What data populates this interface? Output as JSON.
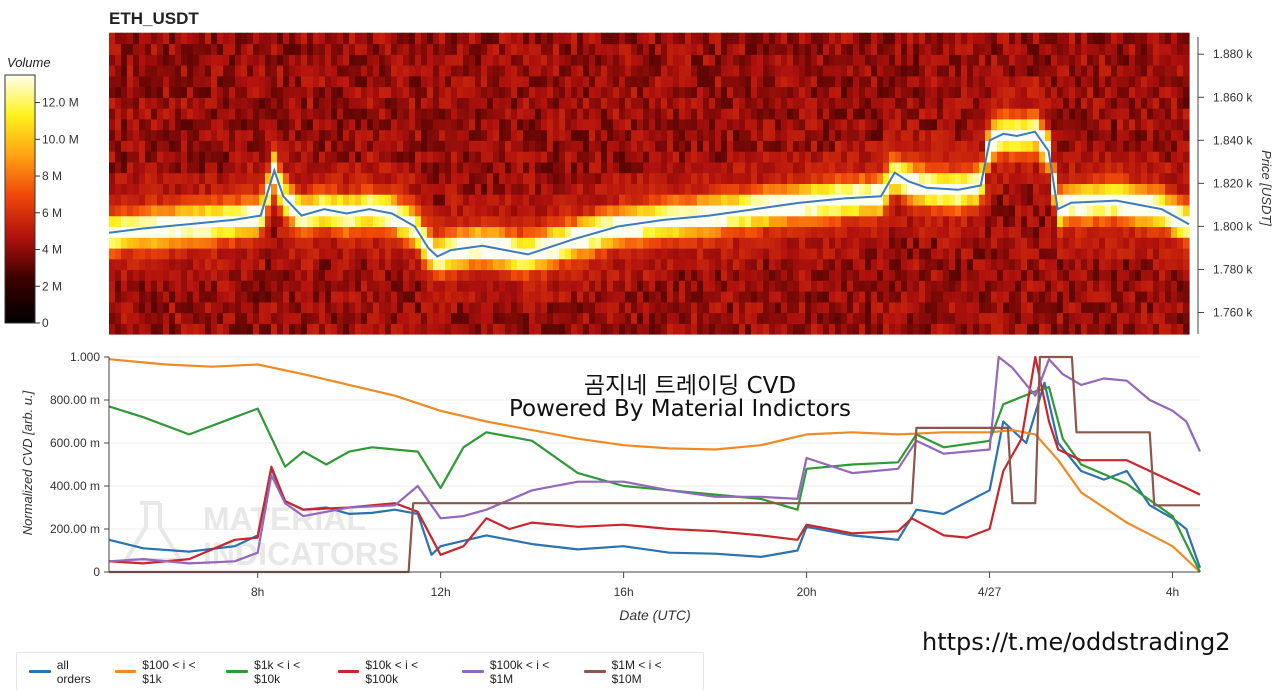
{
  "title": "ETH_USDT",
  "colorbar": {
    "label": "Volume",
    "ticks": [
      "12.0 M",
      "10.0 M",
      "8 M",
      "6 M",
      "4 M",
      "2 M",
      "0"
    ]
  },
  "overlay": {
    "line1": "곰지네 트레이딩 CVD",
    "line2": "Powered By Material Indictors"
  },
  "watermark": "MATERIAL INDICATORS",
  "url": "https://t.me/oddstrading2",
  "colors": {
    "all_orders": "#2a72b0",
    "s100_1k": "#f08a24",
    "s1k_10k": "#2e9a35",
    "s10k_100k": "#c9262c",
    "s100k_1m": "#9467bd",
    "s1m_10m": "#8c564b",
    "price_line": "#3b7bbf"
  },
  "legend": [
    {
      "label": "all orders",
      "color": "#2a72b0"
    },
    {
      "label": "$100 < i < $1k",
      "color": "#f08a24"
    },
    {
      "label": "$1k < i < $10k",
      "color": "#2e9a35"
    },
    {
      "label": "$10k < i < $100k",
      "color": "#c9262c"
    },
    {
      "label": "$100k < i < $1M",
      "color": "#9467bd"
    },
    {
      "label": "$1M < i < $10M",
      "color": "#8c564b"
    }
  ],
  "chart_data": [
    {
      "type": "heatmap",
      "title": "ETH_USDT",
      "ylabel": "Price [USDT]",
      "ylim": [
        1750,
        1888
      ],
      "y_ticks": [
        1760,
        1780,
        1800,
        1820,
        1840,
        1860,
        1880
      ],
      "y_tick_labels": [
        "1.760 k",
        "1.780 k",
        "1.800 k",
        "1.820 k",
        "1.840 k",
        "1.860 k",
        "1.880 k"
      ],
      "colorbar_range": [
        0,
        13.5
      ],
      "colorbar_unit": "M",
      "x_hours_range": [
        4.75,
        28.6
      ],
      "price_series": {
        "x": [
          4.75,
          5.5,
          6.5,
          7.5,
          8.1,
          8.4,
          8.6,
          9.0,
          9.5,
          10.0,
          10.5,
          11.0,
          11.5,
          11.8,
          12.0,
          12.3,
          13.0,
          14.0,
          15.0,
          16.0,
          17.0,
          18.0,
          19.0,
          20.0,
          21.0,
          21.8,
          22.1,
          22.4,
          22.8,
          23.5,
          24.0,
          24.2,
          24.5,
          24.8,
          25.2,
          25.5,
          25.7,
          26.0,
          27.0,
          28.0,
          28.6
        ],
        "values": [
          1797,
          1799,
          1801,
          1803,
          1805,
          1826,
          1814,
          1805,
          1808,
          1806,
          1808,
          1806,
          1800,
          1790,
          1786,
          1789,
          1791,
          1787,
          1794,
          1800,
          1803,
          1805,
          1808,
          1811,
          1813,
          1814,
          1825,
          1821,
          1818,
          1817,
          1819,
          1840,
          1843,
          1842,
          1844,
          1835,
          1808,
          1811,
          1812,
          1808,
          1801
        ]
      }
    },
    {
      "type": "line",
      "xlabel": "Date (UTC)",
      "ylabel": "Normalized CVD [arb. u.]",
      "xlim": [
        4.75,
        28.6
      ],
      "ylim": [
        0,
        1000
      ],
      "y_ticks": [
        0,
        200,
        400,
        600,
        800,
        1000
      ],
      "y_tick_labels": [
        "0",
        "200.00 m",
        "400.00 m",
        "600.00 m",
        "800.00 m",
        "1.000"
      ],
      "x_ticks": [
        8,
        12,
        16,
        20,
        24,
        28
      ],
      "x_tick_labels": [
        "8h",
        "12h",
        "16h",
        "20h",
        "4/27",
        "4h"
      ],
      "series": [
        {
          "name": "all orders",
          "x": [
            4.75,
            5.5,
            6.5,
            7.5,
            8.0,
            8.3,
            8.6,
            9.0,
            9.5,
            10.0,
            10.5,
            11.0,
            11.5,
            11.8,
            12.0,
            13.0,
            14.0,
            15.0,
            16.0,
            17.0,
            18.0,
            19.0,
            19.8,
            20.0,
            21.0,
            22.0,
            22.4,
            23.0,
            24.0,
            24.3,
            24.8,
            25.2,
            25.5,
            26.0,
            26.5,
            27.0,
            27.5,
            28.0,
            28.3,
            28.6
          ],
          "values": [
            150,
            110,
            95,
            120,
            170,
            480,
            330,
            290,
            300,
            270,
            275,
            290,
            270,
            80,
            120,
            170,
            130,
            105,
            120,
            90,
            85,
            70,
            100,
            210,
            170,
            150,
            290,
            270,
            380,
            700,
            600,
            880,
            600,
            470,
            430,
            470,
            310,
            250,
            200,
            20
          ]
        },
        {
          "name": "$100 < i < $1k",
          "x": [
            4.75,
            6.0,
            7.0,
            8.0,
            9.0,
            10.0,
            11.0,
            12.0,
            13.0,
            14.0,
            15.0,
            16.0,
            17.0,
            18.0,
            19.0,
            20.0,
            21.0,
            22.0,
            23.0,
            24.0,
            24.5,
            25.0,
            25.5,
            26.0,
            27.0,
            28.0,
            28.6
          ],
          "values": [
            990,
            965,
            955,
            965,
            920,
            870,
            820,
            750,
            700,
            660,
            620,
            590,
            575,
            570,
            590,
            640,
            650,
            640,
            650,
            650,
            660,
            640,
            520,
            370,
            230,
            120,
            0
          ]
        },
        {
          "name": "$1k < i < $10k",
          "x": [
            4.75,
            5.5,
            6.5,
            7.5,
            8.0,
            8.6,
            9.0,
            9.5,
            10.0,
            10.5,
            11.0,
            11.5,
            12.0,
            12.5,
            13.0,
            14.0,
            15.0,
            16.0,
            17.0,
            18.0,
            19.0,
            19.8,
            20.0,
            21.0,
            22.0,
            22.4,
            23.0,
            24.0,
            24.3,
            25.0,
            25.3,
            25.6,
            26.0,
            27.0,
            28.0,
            28.6
          ],
          "values": [
            770,
            720,
            640,
            720,
            760,
            490,
            560,
            500,
            560,
            580,
            570,
            560,
            390,
            580,
            650,
            610,
            460,
            400,
            380,
            360,
            340,
            290,
            480,
            500,
            510,
            640,
            580,
            610,
            780,
            840,
            860,
            620,
            500,
            410,
            260,
            0
          ]
        },
        {
          "name": "$10k < i < $100k",
          "x": [
            4.75,
            5.5,
            6.5,
            7.5,
            8.0,
            8.3,
            8.6,
            9.0,
            10.0,
            11.0,
            11.5,
            12.0,
            12.5,
            13.0,
            13.5,
            14.0,
            15.0,
            16.0,
            17.0,
            18.0,
            19.0,
            19.8,
            20.0,
            21.0,
            22.0,
            22.3,
            23.0,
            23.5,
            24.0,
            24.3,
            24.7,
            25.0,
            25.3,
            25.5,
            26.0,
            27.0,
            27.5,
            28.0,
            28.4,
            28.6
          ],
          "values": [
            50,
            40,
            60,
            150,
            160,
            490,
            330,
            290,
            300,
            320,
            280,
            80,
            120,
            250,
            200,
            230,
            210,
            220,
            200,
            190,
            170,
            150,
            220,
            180,
            190,
            250,
            170,
            160,
            200,
            470,
            620,
            1000,
            700,
            570,
            520,
            520,
            470,
            420,
            380,
            360
          ]
        },
        {
          "name": "$100k < i < $1M",
          "x": [
            4.75,
            5.5,
            6.5,
            7.5,
            8.0,
            8.3,
            8.6,
            9.0,
            10.0,
            11.0,
            11.5,
            12.0,
            12.5,
            13.0,
            14.0,
            15.0,
            16.0,
            17.0,
            18.0,
            19.0,
            19.8,
            20.0,
            21.0,
            22.0,
            22.4,
            23.0,
            24.0,
            24.2,
            24.5,
            25.0,
            25.3,
            25.6,
            26.0,
            26.5,
            27.0,
            27.5,
            28.0,
            28.3,
            28.6
          ],
          "values": [
            50,
            60,
            40,
            50,
            90,
            450,
            320,
            260,
            300,
            310,
            400,
            250,
            260,
            290,
            380,
            420,
            420,
            380,
            350,
            350,
            340,
            530,
            460,
            480,
            610,
            550,
            570,
            1000,
            950,
            820,
            990,
            920,
            870,
            900,
            890,
            800,
            750,
            700,
            560
          ]
        },
        {
          "name": "$1M < i < $10M",
          "x": [
            4.75,
            11.3,
            11.4,
            22.3,
            22.4,
            24.4,
            24.5,
            25.0,
            25.1,
            25.8,
            25.9,
            27.5,
            27.6,
            28.6
          ],
          "values": [
            0,
            0,
            320,
            320,
            670,
            670,
            320,
            320,
            1000,
            1000,
            650,
            650,
            310,
            310
          ]
        }
      ]
    }
  ]
}
